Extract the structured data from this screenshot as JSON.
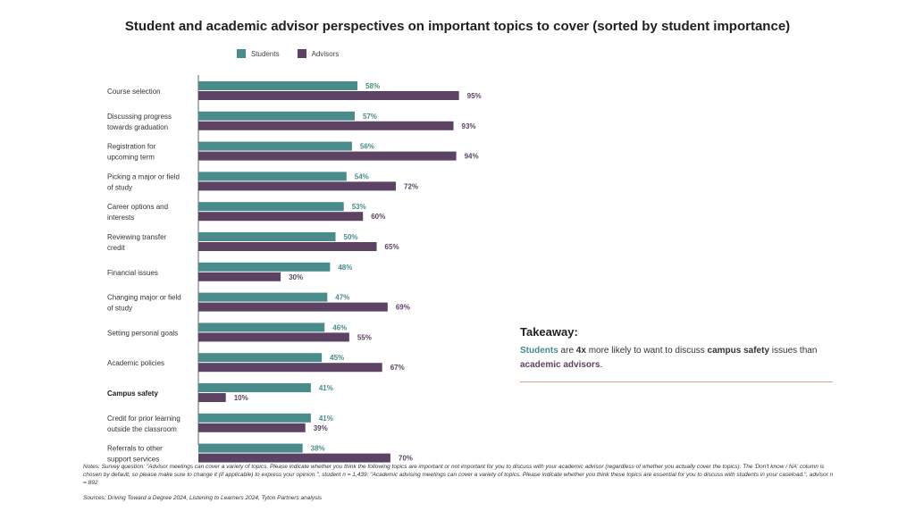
{
  "title": "Student and academic advisor perspectives on important topics to cover (sorted by student importance)",
  "legend": {
    "students_label": "Students",
    "advisors_label": "Advisors"
  },
  "colors": {
    "students": "#4a8b8c",
    "advisors": "#5c4363",
    "accent_line": "#d9a58a"
  },
  "chart_data": {
    "type": "bar",
    "orientation": "horizontal",
    "categories": [
      [
        "Course selection"
      ],
      [
        "Discussing progress",
        "towards graduation"
      ],
      [
        "Registration for",
        "upcoming term"
      ],
      [
        "Picking a major or field",
        "of study"
      ],
      [
        "Career options and",
        "interests"
      ],
      [
        "Reviewing transfer",
        "credit"
      ],
      [
        "Financial issues"
      ],
      [
        "Changing major or field",
        "of study"
      ],
      [
        "Setting personal goals"
      ],
      [
        "Academic policies"
      ],
      [
        "Campus safety"
      ],
      [
        "Credit for prior learning",
        "outside the classroom"
      ],
      [
        "Referrals to other",
        "support services"
      ]
    ],
    "bold_categories": [
      10
    ],
    "series": [
      {
        "name": "Students",
        "values": [
          58,
          57,
          56,
          54,
          53,
          50,
          48,
          47,
          46,
          45,
          41,
          41,
          38
        ]
      },
      {
        "name": "Advisors",
        "values": [
          95,
          93,
          94,
          72,
          60,
          65,
          30,
          69,
          55,
          67,
          10,
          39,
          70
        ]
      }
    ],
    "value_suffix": "%",
    "xlim": [
      0,
      100
    ],
    "grid": false,
    "legend_position": "top-left"
  },
  "takeaway": {
    "heading": "Takeaway:",
    "part1": "Students",
    "part2": " are ",
    "part3": "4x",
    "part4": " more likely to want to discuss ",
    "part5": "campus safety",
    "part6": " issues than ",
    "part7": "academic advisors",
    "part8": "."
  },
  "notes": "Notes: Survey question: \"Advisor meetings can cover a variety of topics. Please indicate whether you think the following topics are important or not important for you to discuss with your academic advisor (regardless of whether you actually cover the topics). The 'Don't know / NA' column is chosen by default, so please make sure to change it (if applicable) to express your opinion.\", student n = 1,439; \"Academic advising meetings can cover a variety of topics. Please indicate whether you think these topics are essential for you to discuss with students in your caseload.\", advisor n = 892",
  "sources": "Sources: Driving Toward a Degree 2024, Listening to Learners 2024, Tyton Partners analysis"
}
